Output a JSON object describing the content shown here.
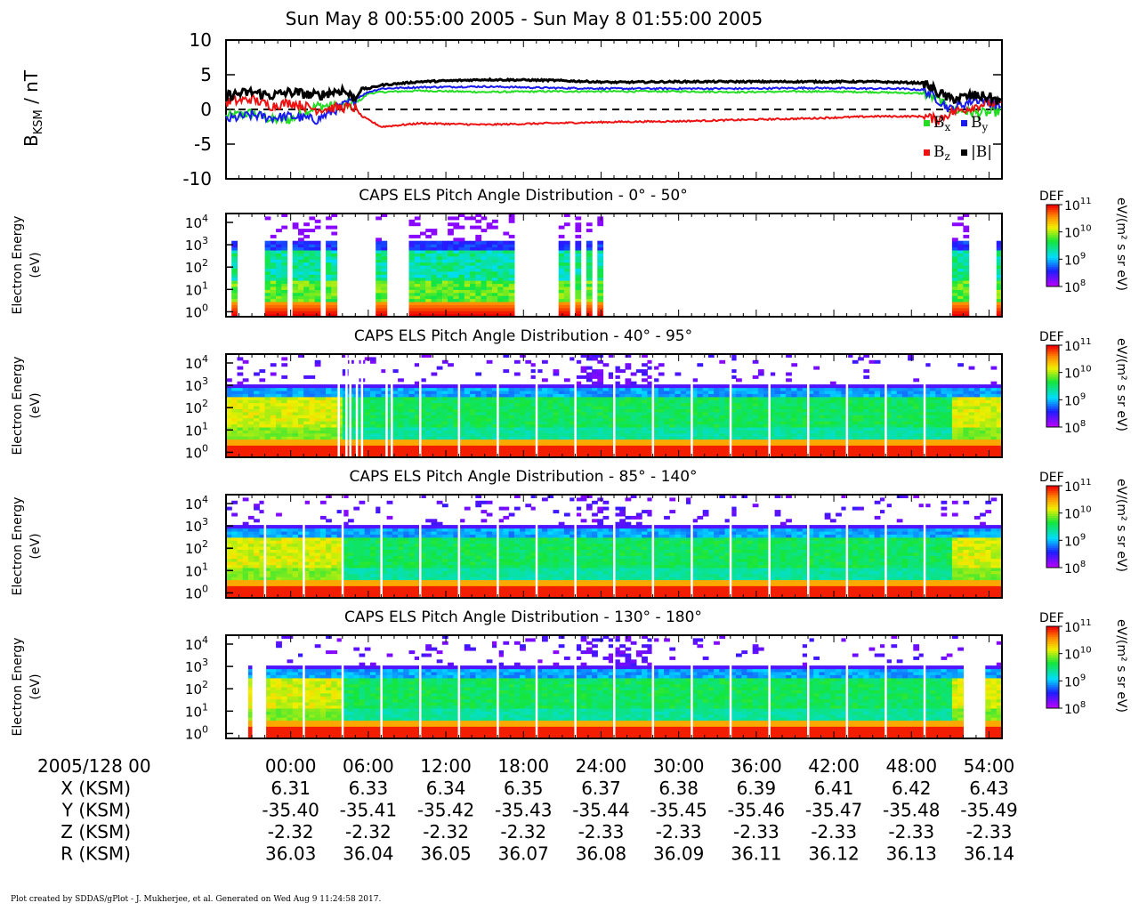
{
  "title": "Sun May 8 00:55:00 2005 - Sun May 8 01:55:00 2005",
  "footer": "Plot created by SDDAS/gPlot - J. Mukherjee, et al.  Generated on Wed Aug 9 11:24:58 2017.",
  "colors": {
    "bx": "#22dd22",
    "by": "#1a1aee",
    "bz": "#ee1111",
    "bmag": "#000000",
    "zero_line": "#000000"
  },
  "chart_data": [
    {
      "type": "line",
      "ylabel": "B",
      "ylabel_sub": "KSM",
      "ylabel_unit": " / nT",
      "ylim": [
        -10,
        10
      ],
      "yticks": [
        "10",
        "5",
        "0",
        "-5",
        "-10"
      ],
      "x_minutes": [
        0,
        2,
        3.5,
        5,
        7,
        9,
        10,
        10.5,
        11,
        12,
        15,
        20,
        25,
        30,
        35,
        40,
        45,
        50,
        52,
        54,
        55,
        56,
        58,
        59,
        60
      ],
      "series": [
        {
          "name": "B",
          "sub": "x",
          "color": "#22dd22",
          "values": [
            -1.0,
            -0.5,
            -1.5,
            -1.5,
            0.5,
            0.5,
            1.0,
            1.5,
            2.3,
            2.5,
            2.7,
            2.5,
            2.6,
            2.6,
            2.6,
            2.5,
            2.6,
            2.5,
            2.4,
            2.3,
            1.5,
            0.0,
            -0.5,
            -0.5,
            -0.2
          ]
        },
        {
          "name": "B",
          "sub": "y",
          "color": "#1a1aee",
          "values": [
            -1.5,
            -0.8,
            -1.2,
            -1.0,
            -1.5,
            0.5,
            1.5,
            2.0,
            2.5,
            3.0,
            3.2,
            3.3,
            3.1,
            3.0,
            3.0,
            3.0,
            3.1,
            3.0,
            3.0,
            2.8,
            1.5,
            0.0,
            1.5,
            1.0,
            0.5
          ]
        },
        {
          "name": "B",
          "sub": "z",
          "color": "#ee1111",
          "values": [
            1.0,
            1.5,
            0.5,
            1.0,
            0.0,
            0.3,
            0.2,
            -1.0,
            -1.5,
            -2.5,
            -2.0,
            -2.2,
            -2.0,
            -1.8,
            -1.7,
            -1.5,
            -1.3,
            -1.0,
            -1.0,
            -1.0,
            -1.5,
            -0.5,
            0.5,
            1.0,
            0.5
          ]
        },
        {
          "name": "|B|",
          "sub": "",
          "color": "#000000",
          "values": [
            2.0,
            2.5,
            2.0,
            2.5,
            2.0,
            2.8,
            1.5,
            3.0,
            3.0,
            3.5,
            4.0,
            4.3,
            4.2,
            3.9,
            4.0,
            4.0,
            4.0,
            4.0,
            3.9,
            3.8,
            2.5,
            1.5,
            2.0,
            1.8,
            1.0
          ]
        }
      ]
    },
    {
      "type": "heatmap",
      "title": "CAPS ELS Pitch Angle Distribution - 0° - 50°",
      "ylabel": "Electron Energy",
      "ylabel_unit": "(eV)",
      "ylim": [
        0.6,
        25000
      ],
      "yticks": [
        "10",
        "10",
        "10",
        "10",
        "10"
      ],
      "ytick_exp": [
        "4",
        "3",
        "2",
        "1",
        "0"
      ],
      "ytick_vals": [
        10000,
        1000,
        100,
        10,
        1
      ],
      "colorbar": {
        "label": "DEF",
        "unit": "eV/(m² s sr eV)",
        "ticks": [
          "10",
          "10",
          "10",
          "10"
        ],
        "tick_exp": [
          "11",
          "10",
          "9",
          "8"
        ],
        "range": [
          100000000,
          100000000000
        ]
      },
      "data_intervals_min": [
        [
          0.5,
          0.7
        ],
        [
          3.1,
          4.8
        ],
        [
          5.3,
          5.9
        ],
        [
          6.1,
          7.4
        ],
        [
          7.9,
          8.6
        ],
        [
          11.6,
          12.3
        ],
        [
          14.0,
          22.4
        ],
        [
          25.7,
          26.4
        ],
        [
          26.8,
          27.3
        ],
        [
          27.8,
          28.2
        ],
        [
          28.6,
          29.2
        ],
        [
          56.2,
          57.6
        ],
        [
          59.5,
          60.0
        ]
      ],
      "profile": "high"
    },
    {
      "type": "heatmap",
      "title": "CAPS ELS Pitch Angle Distribution - 40° - 95°",
      "ylabel": "Electron Energy",
      "ylabel_unit": "(eV)",
      "ylim": [
        0.6,
        25000
      ],
      "yticks": [
        "10",
        "10",
        "10",
        "10",
        "10"
      ],
      "ytick_exp": [
        "4",
        "3",
        "2",
        "1",
        "0"
      ],
      "ytick_vals": [
        10000,
        1000,
        100,
        10,
        1
      ],
      "colorbar": {
        "label": "DEF",
        "unit": "eV/(m² s sr eV)",
        "ticks": [
          "10",
          "10",
          "10",
          "10"
        ],
        "tick_exp": [
          "11",
          "10",
          "9",
          "8"
        ],
        "range": [
          100000000,
          100000000000
        ]
      },
      "data_intervals_min": [
        [
          0.0,
          60.0
        ]
      ],
      "gaps_min": [
        8.7,
        9.3,
        9.6,
        10.1,
        10.5,
        12.4,
        12.8,
        15.0,
        18.0,
        21.0,
        24.0,
        27.0,
        30.0,
        33.0,
        36.0,
        39.0,
        42.0,
        45.0,
        48.0,
        51.0,
        54.0
      ],
      "profile": "mid"
    },
    {
      "type": "heatmap",
      "title": "CAPS ELS Pitch Angle Distribution - 85° - 140°",
      "ylabel": "Electron Energy",
      "ylabel_unit": "(eV)",
      "ylim": [
        0.6,
        25000
      ],
      "yticks": [
        "10",
        "10",
        "10",
        "10",
        "10"
      ],
      "ytick_exp": [
        "4",
        "3",
        "2",
        "1",
        "0"
      ],
      "ytick_vals": [
        10000,
        1000,
        100,
        10,
        1
      ],
      "colorbar": {
        "label": "DEF",
        "unit": "eV/(m² s sr eV)",
        "ticks": [
          "10",
          "10",
          "10",
          "10"
        ],
        "tick_exp": [
          "11",
          "10",
          "9",
          "8"
        ],
        "range": [
          100000000,
          100000000000
        ]
      },
      "data_intervals_min": [
        [
          0.0,
          60.0
        ]
      ],
      "gaps_min": [
        3.0,
        6.0,
        9.0,
        12.0,
        15.0,
        18.0,
        21.0,
        24.0,
        27.0,
        30.0,
        33.0,
        36.0,
        39.0,
        42.0,
        45.0,
        48.0,
        51.0,
        54.0
      ],
      "profile": "mid"
    },
    {
      "type": "heatmap",
      "title": "CAPS ELS Pitch Angle Distribution - 130° - 180°",
      "ylabel": "Electron Energy",
      "ylabel_unit": "(eV)",
      "ylim": [
        0.6,
        25000
      ],
      "yticks": [
        "10",
        "10",
        "10",
        "10",
        "10"
      ],
      "ytick_exp": [
        "4",
        "3",
        "2",
        "1",
        "0"
      ],
      "ytick_vals": [
        10000,
        1000,
        100,
        10,
        1
      ],
      "colorbar": {
        "label": "DEF",
        "unit": "eV/(m² s sr eV)",
        "ticks": [
          "10",
          "10",
          "10",
          "10"
        ],
        "tick_exp": [
          "11",
          "10",
          "9",
          "8"
        ],
        "range": [
          100000000,
          100000000000
        ]
      },
      "data_intervals_min": [
        [
          0.0,
          60.0
        ]
      ],
      "gaps_min": [
        0.3,
        0.9,
        2.1,
        3.0,
        6.0,
        9.0,
        12.0,
        15.0,
        18.0,
        21.0,
        24.0,
        27.0,
        30.0,
        33.0,
        36.0,
        39.0,
        42.0,
        45.0,
        48.0,
        51.0,
        54.0
      ],
      "empty_min": [
        [
          0.0,
          0.3
        ],
        [
          0.6,
          1.7
        ],
        [
          2.3,
          2.9
        ],
        [
          57.2,
          58.6
        ]
      ],
      "profile": "mid"
    }
  ],
  "x_axis": {
    "label": "2005/128 00",
    "ticks": [
      "00:00",
      "06:00",
      "12:00",
      "18:00",
      "24:00",
      "30:00",
      "36:00",
      "42:00",
      "48:00",
      "54:00"
    ],
    "tick_minutes": [
      5,
      11,
      17,
      23,
      29,
      35,
      41,
      47,
      53,
      59
    ],
    "range_minutes": [
      0,
      60
    ]
  },
  "ephemeris": [
    {
      "label": "X (KSM)",
      "values": [
        "6.31",
        "6.33",
        "6.34",
        "6.35",
        "6.37",
        "6.38",
        "6.39",
        "6.41",
        "6.42",
        "6.43"
      ]
    },
    {
      "label": "Y (KSM)",
      "values": [
        "-35.40",
        "-35.41",
        "-35.42",
        "-35.43",
        "-35.44",
        "-35.45",
        "-35.46",
        "-35.47",
        "-35.48",
        "-35.49"
      ]
    },
    {
      "label": "Z (KSM)",
      "values": [
        "-2.32",
        "-2.32",
        "-2.32",
        "-2.32",
        "-2.33",
        "-2.33",
        "-2.33",
        "-2.33",
        "-2.33",
        "-2.33"
      ]
    },
    {
      "label": "R (KSM)",
      "values": [
        "36.03",
        "36.04",
        "36.05",
        "36.07",
        "36.08",
        "36.09",
        "36.11",
        "36.12",
        "36.13",
        "36.14"
      ]
    }
  ]
}
